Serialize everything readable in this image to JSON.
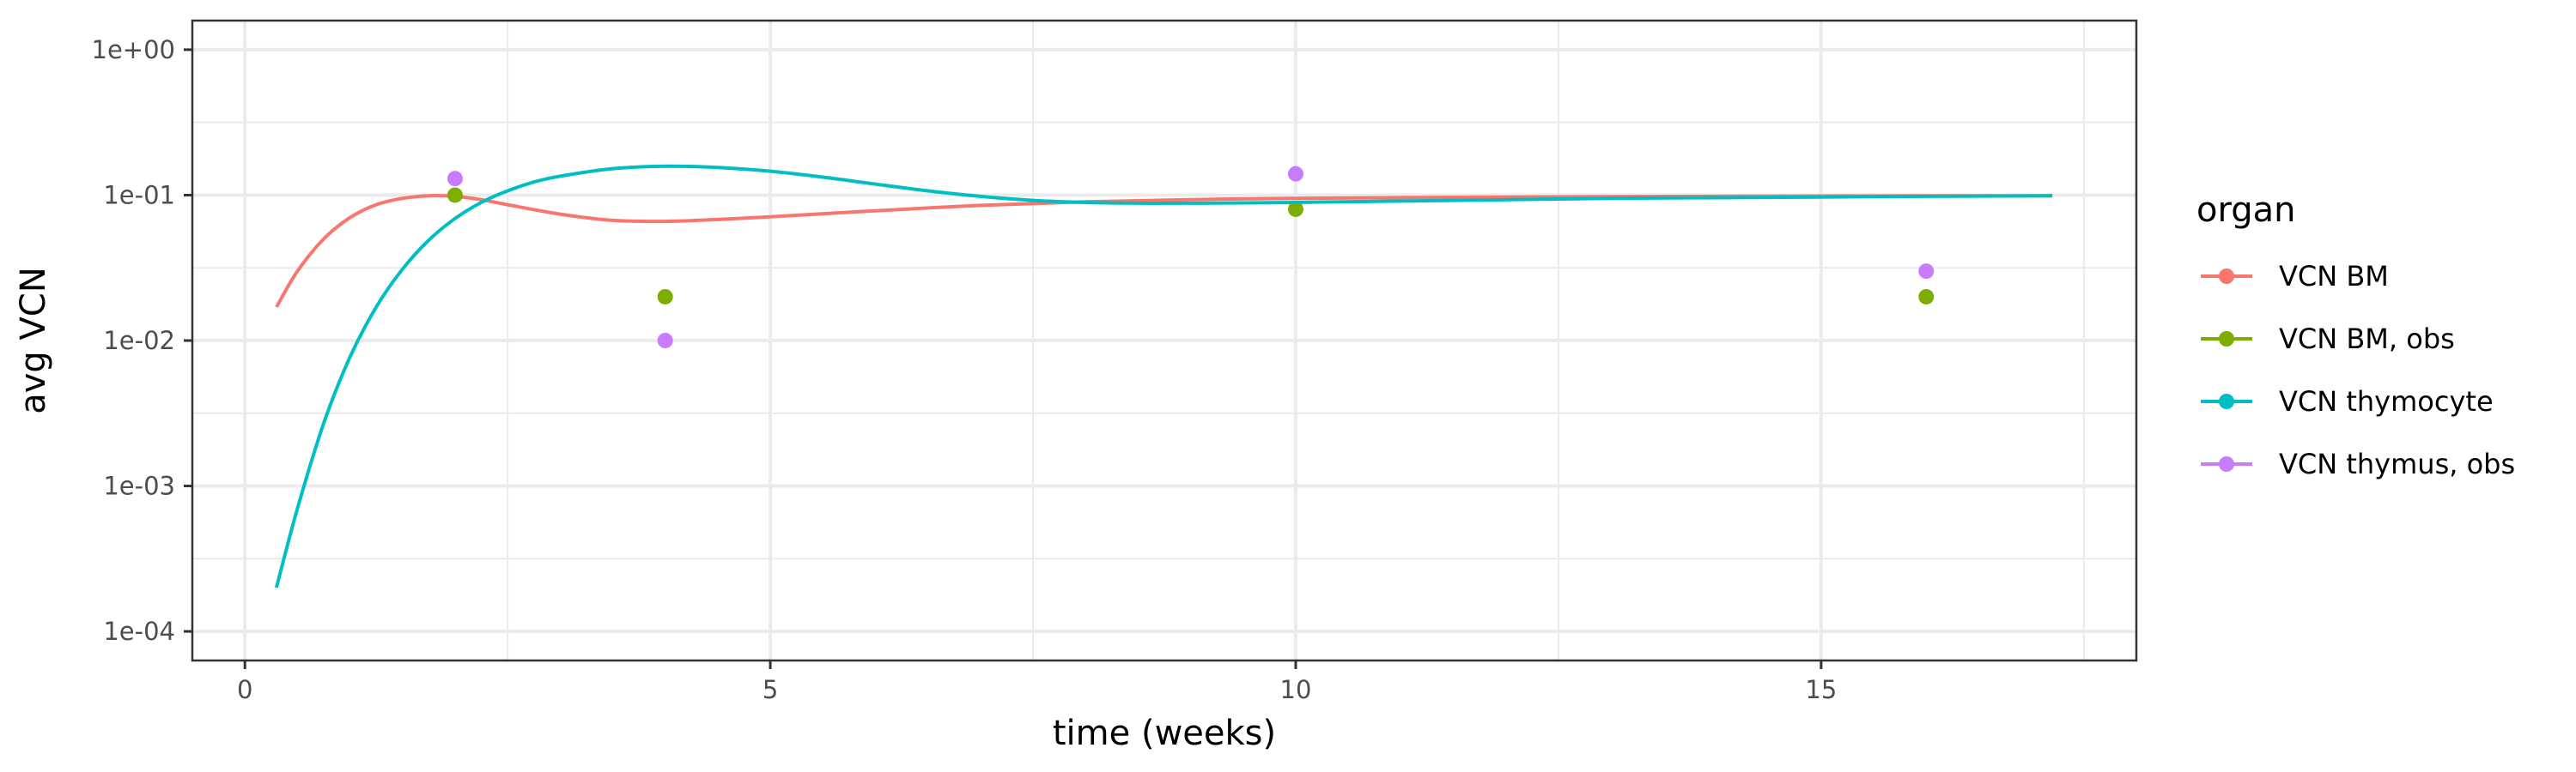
{
  "chart_data": {
    "type": "line",
    "xlabel": "time (weeks)",
    "ylabel": "avg VCN",
    "x_scale": "linear",
    "y_scale": "log10",
    "xlim": [
      -0.5,
      18
    ],
    "ylim": [
      0.0001,
      1
    ],
    "x_ticks": [
      0,
      5,
      10,
      15
    ],
    "x_tick_labels": [
      "0",
      "5",
      "10",
      "15"
    ],
    "y_ticks": [
      0.0001,
      0.001,
      0.01,
      0.1,
      1
    ],
    "y_tick_labels": [
      "1e-04",
      "1e-03",
      "1e-02",
      "1e-01",
      "1e+00"
    ],
    "grid": true,
    "legend": {
      "title": "organ",
      "position": "right"
    },
    "series": [
      {
        "name": "VCN BM",
        "kind": "line",
        "color": "#F8766D",
        "x": [
          0.3,
          0.5,
          0.75,
          1.0,
          1.25,
          1.5,
          1.75,
          2.0,
          2.25,
          2.5,
          3.0,
          3.5,
          4.0,
          4.5,
          5.0,
          6.0,
          7.0,
          8.0,
          9.0,
          10.0,
          12.0,
          14.0,
          16.0,
          17.2
        ],
        "y": [
          0.017,
          0.03,
          0.05,
          0.07,
          0.086,
          0.095,
          0.099,
          0.098,
          0.093,
          0.086,
          0.074,
          0.067,
          0.066,
          0.068,
          0.071,
          0.078,
          0.085,
          0.09,
          0.093,
          0.095,
          0.097,
          0.098,
          0.099,
          0.099
        ]
      },
      {
        "name": "VCN BM, obs",
        "kind": "point",
        "color": "#7CAE00",
        "x": [
          2,
          4,
          10,
          16
        ],
        "y": [
          0.1,
          0.02,
          0.08,
          0.02
        ]
      },
      {
        "name": "VCN thymocyte",
        "kind": "line",
        "color": "#00BFC4",
        "x": [
          0.3,
          0.5,
          0.75,
          1.0,
          1.25,
          1.5,
          1.75,
          2.0,
          2.25,
          2.5,
          2.75,
          3.0,
          3.5,
          4.0,
          4.5,
          5.0,
          5.5,
          6.0,
          6.5,
          7.0,
          7.5,
          8.0,
          8.5,
          9.0,
          10.0,
          11.0,
          12.0,
          13.0,
          14.0,
          15.0,
          16.0,
          17.2
        ],
        "y": [
          0.0002,
          0.0007,
          0.0027,
          0.0077,
          0.017,
          0.031,
          0.049,
          0.069,
          0.089,
          0.107,
          0.123,
          0.135,
          0.152,
          0.158,
          0.155,
          0.146,
          0.133,
          0.119,
          0.107,
          0.098,
          0.092,
          0.089,
          0.088,
          0.088,
          0.089,
          0.091,
          0.093,
          0.095,
          0.096,
          0.097,
          0.098,
          0.099
        ]
      },
      {
        "name": "VCN thymus, obs",
        "kind": "point",
        "color": "#C77CFF",
        "x": [
          2,
          4,
          10,
          16
        ],
        "y": [
          0.13,
          0.01,
          0.14,
          0.03
        ]
      }
    ]
  }
}
